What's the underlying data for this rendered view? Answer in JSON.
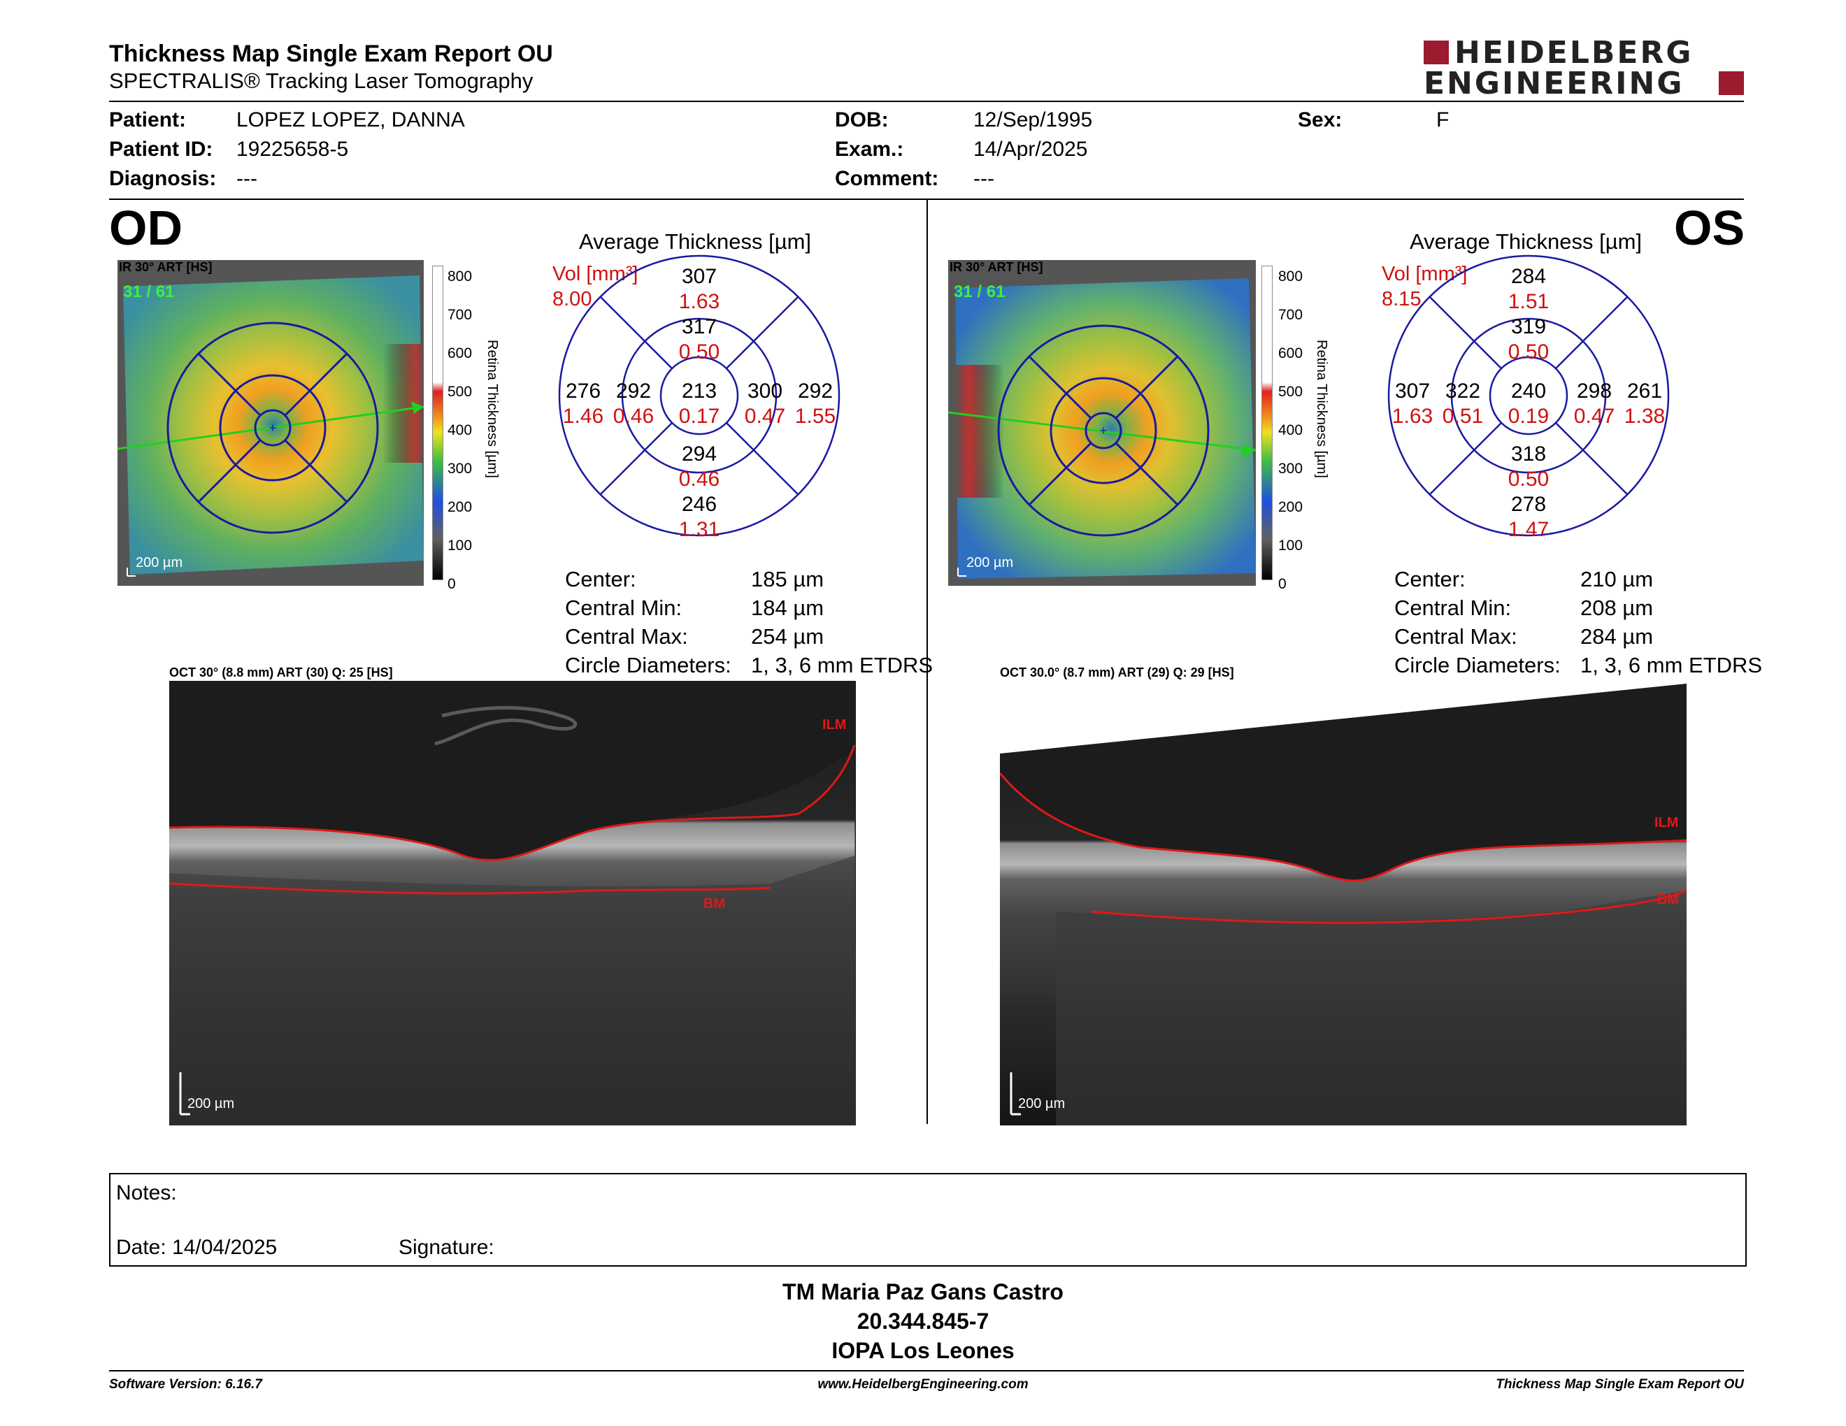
{
  "header": {
    "title": "Thickness Map Single Exam Report OU",
    "subtitle": "SPECTRALIS® Tracking Laser Tomography",
    "logo_line1": "HEIDELBERG",
    "logo_line2": "ENGINEERING"
  },
  "patient": {
    "patient_label": "Patient:",
    "patient_value": "LOPEZ LOPEZ, DANNA",
    "id_label": "Patient ID:",
    "id_value": "19225658-5",
    "diagnosis_label": "Diagnosis:",
    "diagnosis_value": "---",
    "dob_label": "DOB:",
    "dob_value": "12/Sep/1995",
    "exam_label": "Exam.:",
    "exam_value": "14/Apr/2025",
    "comment_label": "Comment:",
    "comment_value": "---",
    "sex_label": "Sex:",
    "sex_value": "F"
  },
  "od": {
    "eye": "OD",
    "ir_label": "IR 30° ART [HS]",
    "frame": "31 / 61",
    "scale": "200 µm",
    "colorbar_ticks": [
      "800",
      "700",
      "600",
      "500",
      "400",
      "300",
      "200",
      "100",
      "0"
    ],
    "colorbar_title": "Retina Thickness [µm]",
    "avg_title": "Average Thickness [µm]",
    "vol_label": "Vol [mm³]",
    "vol_value": "8.00",
    "grid": {
      "center": {
        "t": "213",
        "v": "0.17"
      },
      "inner_sup": {
        "t": "317",
        "v": "0.50"
      },
      "inner_inf": {
        "t": "294",
        "v": "0.46"
      },
      "inner_left": {
        "t": "292",
        "v": "0.46"
      },
      "inner_right": {
        "t": "300",
        "v": "0.47"
      },
      "outer_sup": {
        "t": "307",
        "v": "1.63"
      },
      "outer_inf": {
        "t": "246",
        "v": "1.31"
      },
      "outer_left": {
        "t": "276",
        "v": "1.46"
      },
      "outer_right": {
        "t": "292",
        "v": "1.55"
      }
    },
    "stats": [
      {
        "label": "Center:",
        "value": "185 µm"
      },
      {
        "label": "Central Min:",
        "value": "184 µm"
      },
      {
        "label": "Central Max:",
        "value": "254 µm"
      },
      {
        "label": "Circle Diameters:",
        "value": "1, 3, 6 mm ETDRS"
      }
    ],
    "oct_label": "OCT 30° (8.8 mm) ART (30) Q: 25 [HS]",
    "ilm": "ILM",
    "bm": "BM",
    "oct_scale": "200 µm"
  },
  "os": {
    "eye": "OS",
    "ir_label": "IR 30° ART [HS]",
    "frame": "31 / 61",
    "scale": "200 µm",
    "colorbar_ticks": [
      "800",
      "700",
      "600",
      "500",
      "400",
      "300",
      "200",
      "100",
      "0"
    ],
    "colorbar_title": "Retina Thickness [µm]",
    "avg_title": "Average Thickness [µm]",
    "vol_label": "Vol [mm³]",
    "vol_value": "8.15",
    "grid": {
      "center": {
        "t": "240",
        "v": "0.19"
      },
      "inner_sup": {
        "t": "319",
        "v": "0.50"
      },
      "inner_inf": {
        "t": "318",
        "v": "0.50"
      },
      "inner_left": {
        "t": "322",
        "v": "0.51"
      },
      "inner_right": {
        "t": "298",
        "v": "0.47"
      },
      "outer_sup": {
        "t": "284",
        "v": "1.51"
      },
      "outer_inf": {
        "t": "278",
        "v": "1.47"
      },
      "outer_left": {
        "t": "307",
        "v": "1.63"
      },
      "outer_right": {
        "t": "261",
        "v": "1.38"
      }
    },
    "stats": [
      {
        "label": "Center:",
        "value": "210 µm"
      },
      {
        "label": "Central Min:",
        "value": "208 µm"
      },
      {
        "label": "Central Max:",
        "value": "284 µm"
      },
      {
        "label": "Circle Diameters:",
        "value": "1, 3, 6 mm ETDRS"
      }
    ],
    "oct_label": "OCT 30.0° (8.7 mm) ART (29) Q: 29 [HS]",
    "ilm": "ILM",
    "bm": "BM",
    "oct_scale": "200 µm"
  },
  "notes": {
    "notes_label": "Notes:",
    "date_label": "Date: 14/04/2025",
    "signature_label": "Signature:"
  },
  "signatory": {
    "name": "TM Maria Paz Gans Castro",
    "id": "20.344.845-7",
    "org": "IOPA Los Leones"
  },
  "footer": {
    "version": "Software Version: 6.16.7",
    "website": "www.HeidelbergEngineering.com",
    "report": "Thickness Map Single Exam Report OU"
  },
  "colors": {
    "brand": "#9b1b2f",
    "grid": "#1a1aa0",
    "volume": "#d01010"
  }
}
